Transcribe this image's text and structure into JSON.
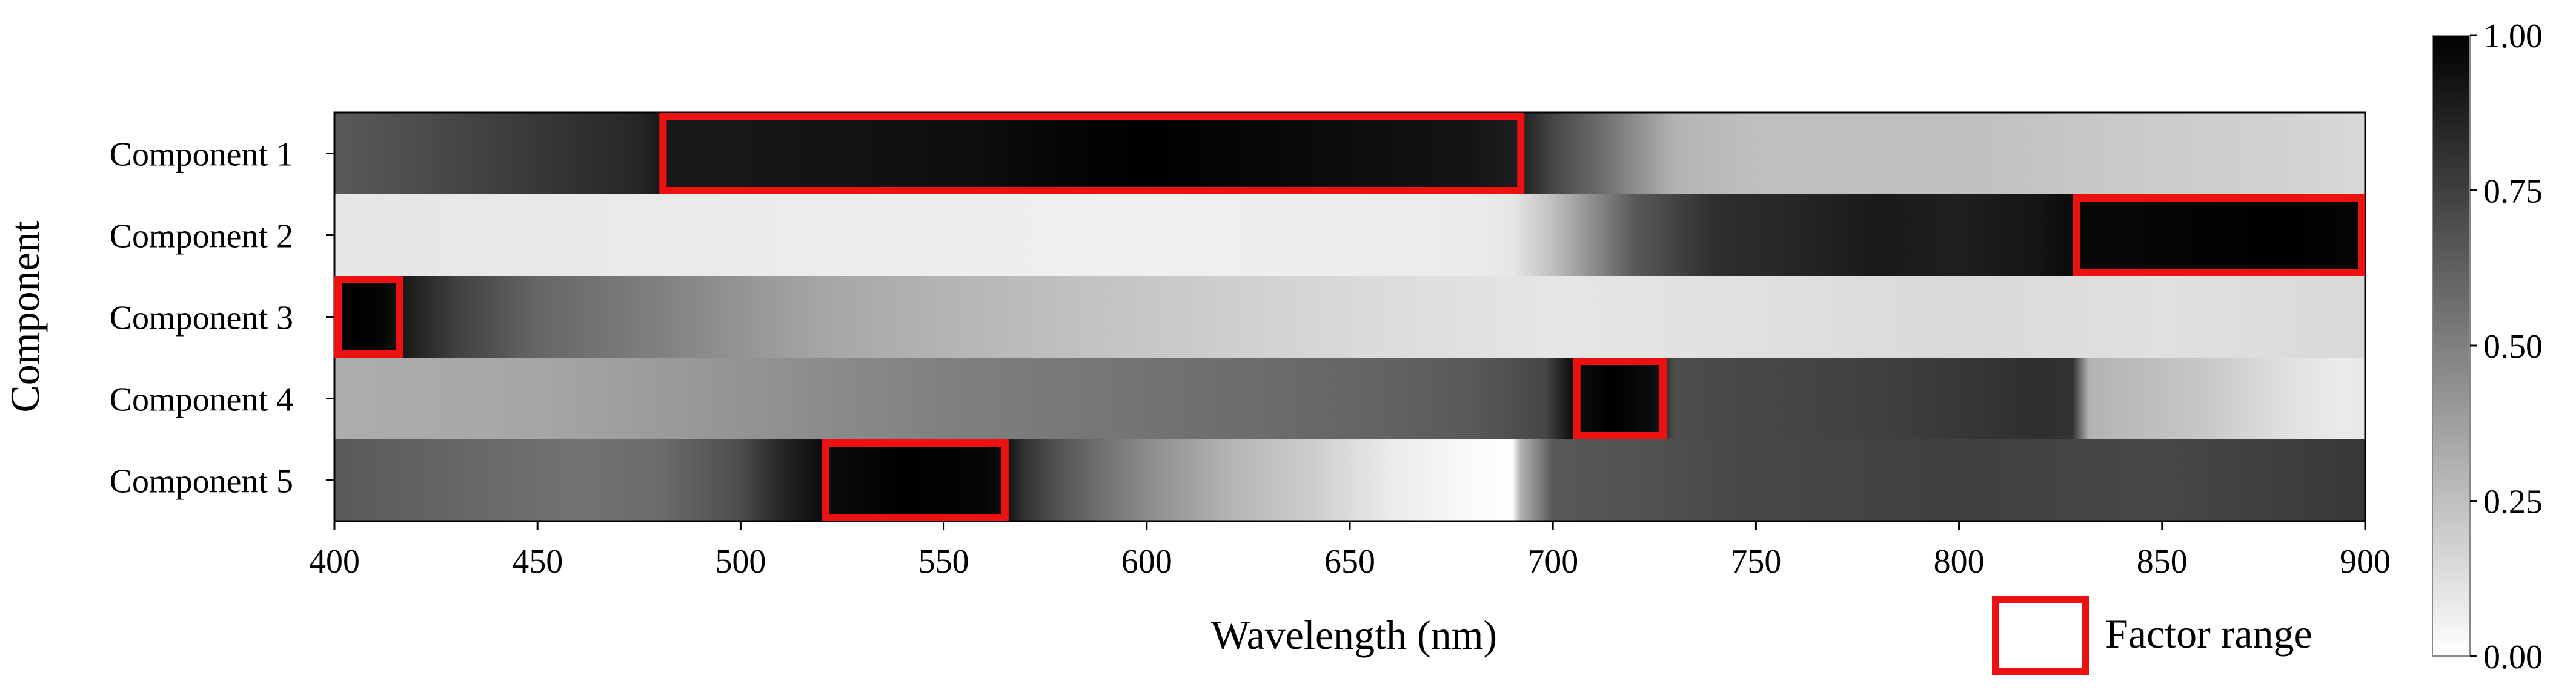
{
  "chart_data": {
    "type": "heatmap",
    "title": "",
    "xlabel": "Wavelength (nm)",
    "ylabel": "Component",
    "xlim": [
      400,
      900
    ],
    "x_ticks": [
      400,
      450,
      500,
      550,
      600,
      650,
      700,
      750,
      800,
      850,
      900
    ],
    "x_tick_labels": [
      "400",
      "450",
      "500",
      "550",
      "600",
      "650",
      "700",
      "750",
      "800",
      "850",
      "900"
    ],
    "colormap": "gray_r",
    "colorbar": {
      "range": [
        0,
        1
      ],
      "ticks": [
        0,
        0.25,
        0.5,
        0.75,
        1
      ],
      "tick_labels": [
        "0.00",
        "0.25",
        "0.50",
        "0.75",
        "1.00"
      ]
    },
    "rows": [
      {
        "name": "Component 1",
        "profile": [
          [
            400,
            0.65
          ],
          [
            420,
            0.7
          ],
          [
            450,
            0.78
          ],
          [
            475,
            0.85
          ],
          [
            480,
            0.9
          ],
          [
            500,
            0.91
          ],
          [
            530,
            0.93
          ],
          [
            560,
            0.95
          ],
          [
            580,
            0.98
          ],
          [
            600,
            1.0
          ],
          [
            620,
            0.98
          ],
          [
            650,
            0.95
          ],
          [
            680,
            0.92
          ],
          [
            692,
            0.88
          ],
          [
            700,
            0.72
          ],
          [
            710,
            0.6
          ],
          [
            720,
            0.45
          ],
          [
            730,
            0.3
          ],
          [
            750,
            0.25
          ],
          [
            800,
            0.25
          ],
          [
            850,
            0.2
          ],
          [
            880,
            0.18
          ],
          [
            900,
            0.15
          ]
        ],
        "factor_range": [
          480,
          693
        ]
      },
      {
        "name": "Component 2",
        "profile": [
          [
            400,
            0.1
          ],
          [
            500,
            0.08
          ],
          [
            600,
            0.06
          ],
          [
            680,
            0.08
          ],
          [
            690,
            0.1
          ],
          [
            700,
            0.25
          ],
          [
            705,
            0.35
          ],
          [
            720,
            0.65
          ],
          [
            740,
            0.82
          ],
          [
            760,
            0.85
          ],
          [
            780,
            0.9
          ],
          [
            800,
            0.88
          ],
          [
            820,
            0.92
          ],
          [
            830,
            0.97
          ],
          [
            860,
            0.99
          ],
          [
            880,
            1.0
          ],
          [
            900,
            0.98
          ]
        ],
        "factor_range": [
          828,
          900
        ]
      },
      {
        "name": "Component 3",
        "profile": [
          [
            400,
            0.98
          ],
          [
            405,
            1.0
          ],
          [
            412,
            0.98
          ],
          [
            417,
            0.9
          ],
          [
            430,
            0.75
          ],
          [
            450,
            0.6
          ],
          [
            480,
            0.5
          ],
          [
            500,
            0.42
          ],
          [
            520,
            0.35
          ],
          [
            560,
            0.28
          ],
          [
            600,
            0.22
          ],
          [
            650,
            0.15
          ],
          [
            700,
            0.1
          ],
          [
            750,
            0.12
          ],
          [
            800,
            0.15
          ],
          [
            850,
            0.12
          ],
          [
            900,
            0.15
          ]
        ],
        "factor_range": [
          400,
          417
        ]
      },
      {
        "name": "Component 4",
        "profile": [
          [
            400,
            0.32
          ],
          [
            450,
            0.35
          ],
          [
            500,
            0.42
          ],
          [
            550,
            0.5
          ],
          [
            600,
            0.55
          ],
          [
            650,
            0.6
          ],
          [
            680,
            0.65
          ],
          [
            698,
            0.72
          ],
          [
            705,
            0.95
          ],
          [
            715,
            1.0
          ],
          [
            725,
            0.95
          ],
          [
            730,
            0.7
          ],
          [
            750,
            0.72
          ],
          [
            780,
            0.75
          ],
          [
            800,
            0.78
          ],
          [
            820,
            0.82
          ],
          [
            828,
            0.8
          ],
          [
            832,
            0.3
          ],
          [
            860,
            0.22
          ],
          [
            880,
            0.12
          ],
          [
            895,
            0.08
          ],
          [
            900,
            0.1
          ]
        ],
        "factor_range": [
          705,
          728
        ]
      },
      {
        "name": "Component 5",
        "profile": [
          [
            400,
            0.65
          ],
          [
            430,
            0.6
          ],
          [
            460,
            0.55
          ],
          [
            480,
            0.58
          ],
          [
            500,
            0.7
          ],
          [
            510,
            0.85
          ],
          [
            520,
            0.95
          ],
          [
            540,
            1.0
          ],
          [
            560,
            0.98
          ],
          [
            565,
            0.95
          ],
          [
            570,
            0.8
          ],
          [
            580,
            0.65
          ],
          [
            600,
            0.45
          ],
          [
            620,
            0.3
          ],
          [
            640,
            0.2
          ],
          [
            660,
            0.08
          ],
          [
            680,
            0.02
          ],
          [
            690,
            0.0
          ],
          [
            692,
            0.3
          ],
          [
            700,
            0.65
          ],
          [
            750,
            0.72
          ],
          [
            800,
            0.75
          ],
          [
            850,
            0.72
          ],
          [
            900,
            0.78
          ]
        ],
        "factor_range": [
          520,
          566
        ]
      }
    ],
    "annotation_color": "#ee1111",
    "legend": {
      "label": "Factor range",
      "placement": "bottom-right"
    }
  }
}
